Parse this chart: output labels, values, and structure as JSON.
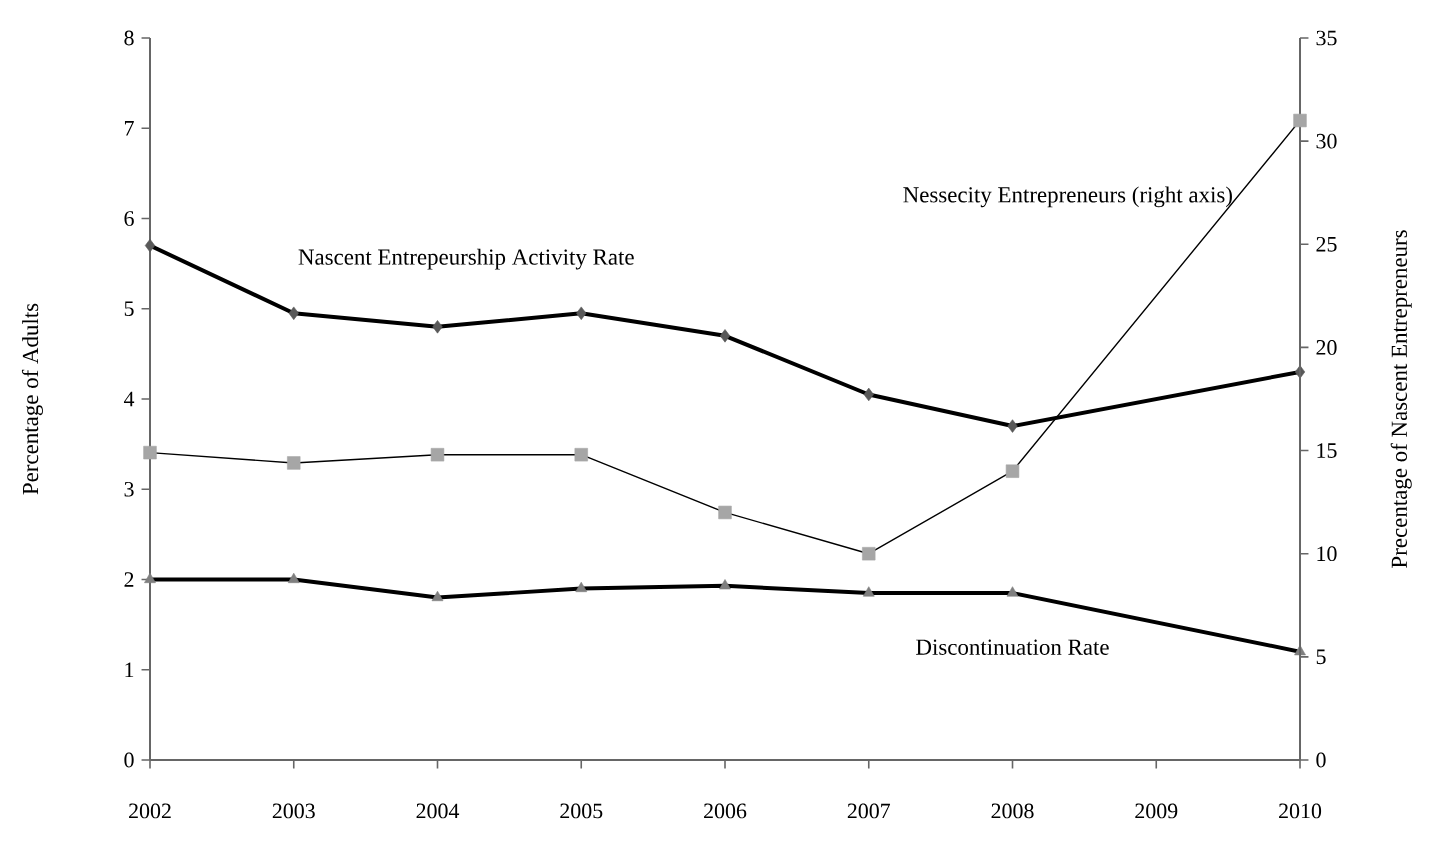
{
  "chart_data": {
    "type": "line",
    "ylabel": "Percentage of Adults",
    "y2label": "Precentage of Nascent Entrepreneurs",
    "x": [
      2002,
      2003,
      2004,
      2005,
      2006,
      2007,
      2008,
      2010
    ],
    "series": [
      {
        "name": "Nascent Entrepeurship Activity Rate",
        "color": "#595959",
        "marker": "diamond",
        "values": [
          5.7,
          4.95,
          4.8,
          4.95,
          4.7,
          4.05,
          3.7,
          4.3
        ]
      },
      {
        "name": "Nessecity Entrepreneurs (right axis)",
        "color": "#a6a6a6",
        "marker": "square",
        "axis": "y2",
        "values": [
          14.9,
          14.4,
          14.8,
          14.8,
          12,
          10,
          14,
          31
        ]
      },
      {
        "name": "Discontinuation Rate",
        "color": "#7f7f7f",
        "marker": "triangle",
        "values": [
          2.0,
          2.0,
          1.8,
          1.9,
          1.93,
          1.85,
          1.85,
          1.2
        ]
      }
    ],
    "xlim": [
      2002,
      2010
    ],
    "xticks": [
      2002,
      2003,
      2004,
      2005,
      2006,
      2007,
      2008,
      2009,
      2010
    ],
    "ylim": [
      0,
      8
    ],
    "yticks": [
      0,
      1,
      2,
      3,
      4,
      5,
      6,
      7,
      8
    ],
    "y2lim": [
      0,
      35
    ],
    "y2ticks": [
      0,
      5,
      10,
      15,
      20,
      25,
      30,
      35
    ],
    "legend": false,
    "grid": false,
    "line_style": "solid"
  }
}
